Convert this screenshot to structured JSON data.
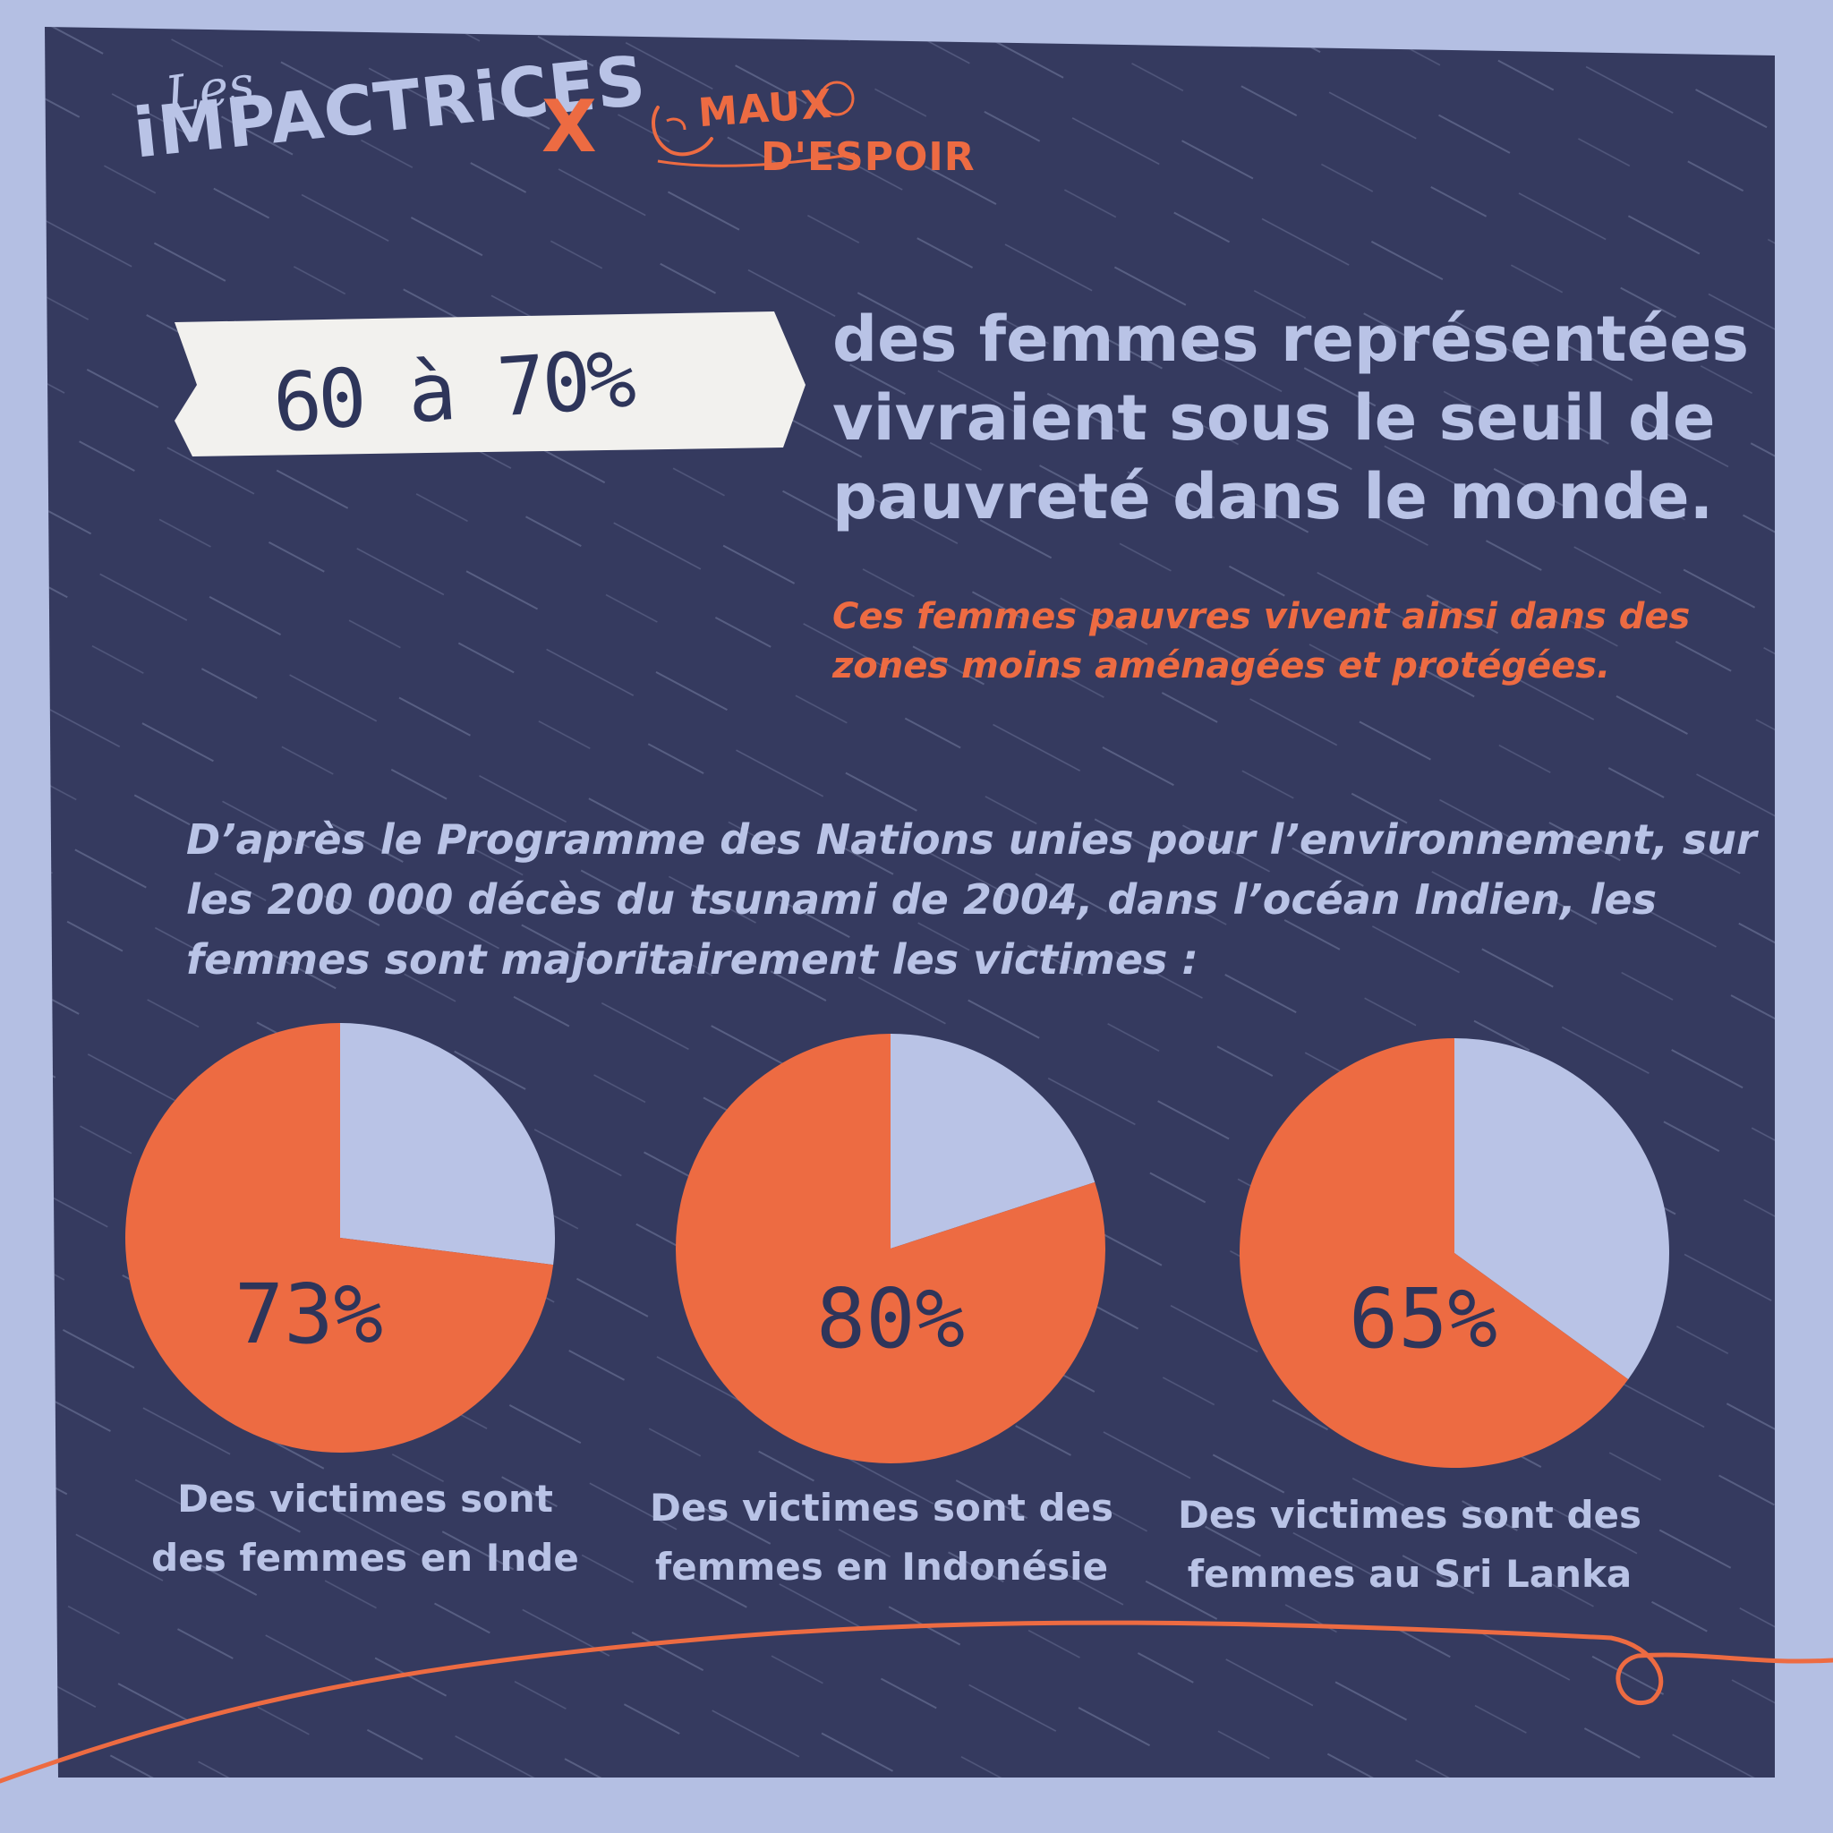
{
  "colors": {
    "background": "#b4bfe3",
    "panel": "#353a5f",
    "accent_orange": "#ed6b42",
    "light_lavender": "#b9c3e6",
    "dark_ink": "#2e355a"
  },
  "logo": {
    "les": "Les",
    "impactrices": "iMPACTRiCES",
    "x": "X",
    "maux": "MAUX",
    "espoir": "D'ESPOIR"
  },
  "stat": {
    "value": "60 à 70%",
    "headline": "des femmes représentées vivraient sous le seuil de pauvreté dans le monde.",
    "subline": "Ces femmes pauvres vivent ainsi dans des zones moins aménagées et protégées."
  },
  "intro": "D’après le Programme des Nations unies pour l’environnement, sur les 200 000 décès du tsunami de 2004, dans l’océan Indien, les femmes sont majoritairement les victimes :",
  "chart_data": [
    {
      "type": "pie",
      "label": "73%",
      "values": [
        73,
        27
      ],
      "colors": [
        "#ed6b42",
        "#b9c3e6"
      ],
      "caption_lines": [
        "Des victimes sont",
        "des femmes en Inde"
      ]
    },
    {
      "type": "pie",
      "label": "80%",
      "values": [
        80,
        20
      ],
      "colors": [
        "#ed6b42",
        "#b9c3e6"
      ],
      "caption_lines": [
        "Des victimes sont des",
        "femmes en Indonésie"
      ]
    },
    {
      "type": "pie",
      "label": "65%",
      "values": [
        65,
        35
      ],
      "colors": [
        "#ed6b42",
        "#b9c3e6"
      ],
      "caption_lines": [
        "Des victimes sont des",
        "femmes au Sri Lanka"
      ]
    }
  ]
}
